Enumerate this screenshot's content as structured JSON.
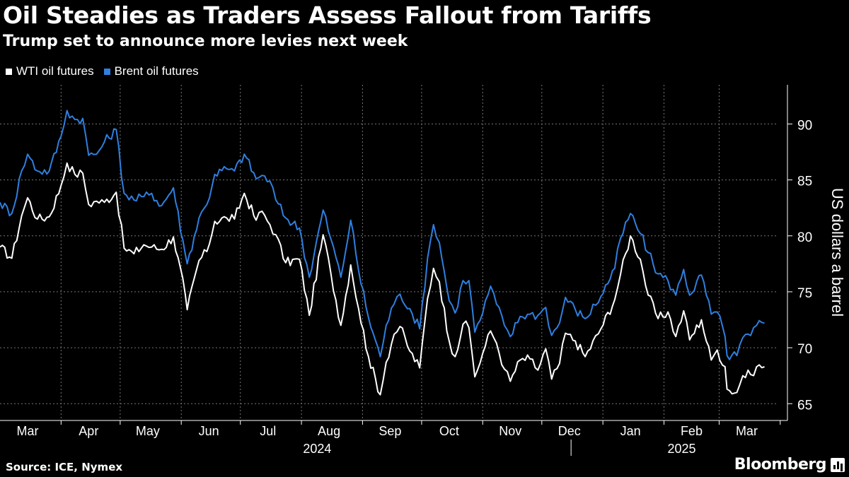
{
  "title": "Oil Steadies as Traders Assess Fallout from Tariffs",
  "subtitle": "Trump set to announce more levies next week",
  "source": "Source: ICE, Nymex",
  "brand": "Bloomberg",
  "colors": {
    "wti": "#ffffff",
    "brent": "#2f7fe0",
    "grid": "#777777",
    "background": "#000000"
  },
  "chart_data": {
    "type": "line",
    "x_unit": "date",
    "series": [
      {
        "name": "WTI oil futures",
        "anchors": [
          [
            "2024-03-01",
            79.0
          ],
          [
            "2024-03-07",
            78.0
          ],
          [
            "2024-03-12",
            81.8
          ],
          [
            "2024-03-15",
            83.4
          ],
          [
            "2024-03-20",
            81.5
          ],
          [
            "2024-03-26",
            81.7
          ],
          [
            "2024-04-01",
            84.5
          ],
          [
            "2024-04-04",
            86.5
          ],
          [
            "2024-04-08",
            85.5
          ],
          [
            "2024-04-12",
            85.6
          ],
          [
            "2024-04-15",
            82.8
          ],
          [
            "2024-04-19",
            83.1
          ],
          [
            "2024-04-23",
            83.0
          ],
          [
            "2024-04-29",
            83.9
          ],
          [
            "2024-05-03",
            78.9
          ],
          [
            "2024-05-08",
            78.4
          ],
          [
            "2024-05-13",
            79.2
          ],
          [
            "2024-05-17",
            79.0
          ],
          [
            "2024-05-22",
            78.8
          ],
          [
            "2024-05-28",
            79.9
          ],
          [
            "2024-06-03",
            74.8
          ],
          [
            "2024-06-04",
            73.4
          ],
          [
            "2024-06-10",
            77.8
          ],
          [
            "2024-06-14",
            78.6
          ],
          [
            "2024-06-18",
            81.3
          ],
          [
            "2024-06-24",
            81.6
          ],
          [
            "2024-06-28",
            81.5
          ],
          [
            "2024-07-03",
            83.8
          ],
          [
            "2024-07-09",
            81.4
          ],
          [
            "2024-07-12",
            82.2
          ],
          [
            "2024-07-16",
            81.0
          ],
          [
            "2024-07-19",
            80.1
          ],
          [
            "2024-07-24",
            77.6
          ],
          [
            "2024-07-31",
            77.9
          ],
          [
            "2024-08-05",
            72.9
          ],
          [
            "2024-08-12",
            80.1
          ],
          [
            "2024-08-16",
            76.6
          ],
          [
            "2024-08-21",
            72.0
          ],
          [
            "2024-08-26",
            77.4
          ],
          [
            "2024-08-30",
            73.5
          ],
          [
            "2024-09-04",
            69.2
          ],
          [
            "2024-09-10",
            65.8
          ],
          [
            "2024-09-13",
            68.7
          ],
          [
            "2024-09-17",
            71.2
          ],
          [
            "2024-09-20",
            71.9
          ],
          [
            "2024-09-25",
            69.7
          ],
          [
            "2024-09-30",
            68.2
          ],
          [
            "2024-10-04",
            74.4
          ],
          [
            "2024-10-07",
            77.1
          ],
          [
            "2024-10-10",
            75.9
          ],
          [
            "2024-10-15",
            70.6
          ],
          [
            "2024-10-18",
            69.2
          ],
          [
            "2024-10-22",
            72.1
          ],
          [
            "2024-10-25",
            71.8
          ],
          [
            "2024-10-28",
            67.4
          ],
          [
            "2024-11-01",
            69.5
          ],
          [
            "2024-11-05",
            71.5
          ],
          [
            "2024-11-08",
            70.4
          ],
          [
            "2024-11-12",
            68.1
          ],
          [
            "2024-11-15",
            67.0
          ],
          [
            "2024-11-20",
            68.9
          ],
          [
            "2024-11-25",
            69.0
          ],
          [
            "2024-11-29",
            68.0
          ],
          [
            "2024-12-03",
            69.9
          ],
          [
            "2024-12-06",
            67.2
          ],
          [
            "2024-12-10",
            68.6
          ],
          [
            "2024-12-13",
            71.3
          ],
          [
            "2024-12-18",
            70.6
          ],
          [
            "2024-12-23",
            69.2
          ],
          [
            "2024-12-31",
            71.7
          ],
          [
            "2025-01-07",
            74.3
          ],
          [
            "2025-01-10",
            76.6
          ],
          [
            "2025-01-15",
            80.0
          ],
          [
            "2025-01-20",
            77.9
          ],
          [
            "2025-01-24",
            74.7
          ],
          [
            "2025-01-29",
            72.6
          ],
          [
            "2025-02-03",
            73.2
          ],
          [
            "2025-02-07",
            71.0
          ],
          [
            "2025-02-11",
            73.3
          ],
          [
            "2025-02-14",
            70.7
          ],
          [
            "2025-02-20",
            72.5
          ],
          [
            "2025-02-25",
            68.9
          ],
          [
            "2025-02-28",
            69.8
          ],
          [
            "2025-03-04",
            68.3
          ],
          [
            "2025-03-05",
            66.3
          ],
          [
            "2025-03-10",
            66.0
          ],
          [
            "2025-03-13",
            67.5
          ],
          [
            "2025-03-17",
            67.6
          ],
          [
            "2025-03-20",
            68.3
          ],
          [
            "2025-03-24",
            68.3
          ]
        ]
      },
      {
        "name": "Brent oil futures",
        "anchors": [
          [
            "2024-03-01",
            83.0
          ],
          [
            "2024-03-07",
            82.0
          ],
          [
            "2024-03-12",
            85.8
          ],
          [
            "2024-03-15",
            87.3
          ],
          [
            "2024-03-20",
            85.8
          ],
          [
            "2024-03-26",
            85.8
          ],
          [
            "2024-04-01",
            88.9
          ],
          [
            "2024-04-04",
            91.2
          ],
          [
            "2024-04-08",
            90.4
          ],
          [
            "2024-04-12",
            90.5
          ],
          [
            "2024-04-15",
            87.2
          ],
          [
            "2024-04-19",
            87.3
          ],
          [
            "2024-04-23",
            88.4
          ],
          [
            "2024-04-29",
            89.5
          ],
          [
            "2024-05-03",
            83.8
          ],
          [
            "2024-05-08",
            83.2
          ],
          [
            "2024-05-13",
            83.5
          ],
          [
            "2024-05-17",
            83.8
          ],
          [
            "2024-05-22",
            82.7
          ],
          [
            "2024-05-28",
            84.3
          ],
          [
            "2024-06-03",
            78.4
          ],
          [
            "2024-06-04",
            77.5
          ],
          [
            "2024-06-10",
            81.6
          ],
          [
            "2024-06-14",
            82.8
          ],
          [
            "2024-06-18",
            85.5
          ],
          [
            "2024-06-24",
            86.0
          ],
          [
            "2024-06-28",
            85.8
          ],
          [
            "2024-07-03",
            87.3
          ],
          [
            "2024-07-09",
            85.1
          ],
          [
            "2024-07-12",
            85.4
          ],
          [
            "2024-07-16",
            84.9
          ],
          [
            "2024-07-19",
            83.2
          ],
          [
            "2024-07-24",
            81.6
          ],
          [
            "2024-07-31",
            80.7
          ],
          [
            "2024-08-05",
            76.3
          ],
          [
            "2024-08-12",
            82.3
          ],
          [
            "2024-08-16",
            79.7
          ],
          [
            "2024-08-21",
            76.3
          ],
          [
            "2024-08-26",
            81.4
          ],
          [
            "2024-08-30",
            76.9
          ],
          [
            "2024-09-04",
            72.7
          ],
          [
            "2024-09-10",
            69.2
          ],
          [
            "2024-09-13",
            72.0
          ],
          [
            "2024-09-17",
            73.9
          ],
          [
            "2024-09-20",
            74.8
          ],
          [
            "2024-09-25",
            73.5
          ],
          [
            "2024-09-30",
            71.7
          ],
          [
            "2024-10-04",
            78.0
          ],
          [
            "2024-10-07",
            81.0
          ],
          [
            "2024-10-10",
            79.4
          ],
          [
            "2024-10-15",
            74.2
          ],
          [
            "2024-10-18",
            73.1
          ],
          [
            "2024-10-22",
            76.0
          ],
          [
            "2024-10-25",
            76.0
          ],
          [
            "2024-10-28",
            71.4
          ],
          [
            "2024-11-01",
            73.1
          ],
          [
            "2024-11-05",
            75.5
          ],
          [
            "2024-11-08",
            73.9
          ],
          [
            "2024-11-12",
            72.0
          ],
          [
            "2024-11-15",
            71.0
          ],
          [
            "2024-11-20",
            72.8
          ],
          [
            "2024-11-25",
            73.0
          ],
          [
            "2024-11-29",
            72.9
          ],
          [
            "2024-12-03",
            73.6
          ],
          [
            "2024-12-06",
            71.1
          ],
          [
            "2024-12-10",
            72.2
          ],
          [
            "2024-12-13",
            74.5
          ],
          [
            "2024-12-18",
            73.4
          ],
          [
            "2024-12-23",
            72.6
          ],
          [
            "2024-12-31",
            74.6
          ],
          [
            "2025-01-07",
            77.1
          ],
          [
            "2025-01-10",
            79.8
          ],
          [
            "2025-01-15",
            82.0
          ],
          [
            "2025-01-20",
            80.2
          ],
          [
            "2025-01-24",
            78.5
          ],
          [
            "2025-01-29",
            76.6
          ],
          [
            "2025-02-03",
            76.0
          ],
          [
            "2025-02-07",
            74.7
          ],
          [
            "2025-02-11",
            77.0
          ],
          [
            "2025-02-14",
            74.7
          ],
          [
            "2025-02-20",
            76.5
          ],
          [
            "2025-02-25",
            73.0
          ],
          [
            "2025-02-28",
            73.2
          ],
          [
            "2025-03-04",
            71.0
          ],
          [
            "2025-03-05",
            69.3
          ],
          [
            "2025-03-10",
            69.3
          ],
          [
            "2025-03-13",
            70.9
          ],
          [
            "2025-03-17",
            71.1
          ],
          [
            "2025-03-20",
            72.0
          ],
          [
            "2025-03-24",
            72.2
          ]
        ]
      }
    ],
    "x_range": [
      "2024-03-01",
      "2025-03-31"
    ],
    "ylim": [
      63.5,
      93.5
    ],
    "y_ticks": [
      65,
      70,
      75,
      80,
      85,
      90
    ],
    "y_tick_labels": [
      "65",
      "70",
      "75",
      "80",
      "85",
      "90"
    ],
    "y_axis_side": "right",
    "ylabel": "US dollars a barrel",
    "x_ticks": [
      [
        "2024-03-15",
        "Mar"
      ],
      [
        "2024-04-15",
        "Apr"
      ],
      [
        "2024-05-15",
        "May"
      ],
      [
        "2024-06-15",
        "Jun"
      ],
      [
        "2024-07-15",
        "Jul"
      ],
      [
        "2024-08-15",
        "Aug"
      ],
      [
        "2024-09-15",
        "Sep"
      ],
      [
        "2024-10-15",
        "Oct"
      ],
      [
        "2024-11-15",
        "Nov"
      ],
      [
        "2024-12-15",
        "Dec"
      ],
      [
        "2025-01-15",
        "Jan"
      ],
      [
        "2025-02-15",
        "Feb"
      ],
      [
        "2025-03-15",
        "Mar"
      ]
    ],
    "x_year_labels": [
      [
        "2024-08-09",
        "2024"
      ],
      [
        "2025-02-10",
        "2025"
      ]
    ],
    "grid": "dashed",
    "legend_position": "top-left"
  }
}
